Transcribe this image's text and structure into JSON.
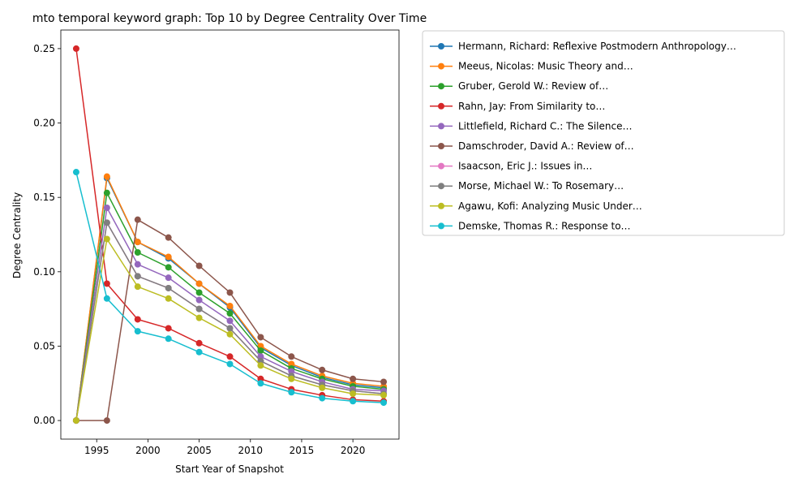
{
  "chart_data": {
    "type": "line",
    "title": "mto temporal keyword graph: Top 10 by Degree Centrality Over Time",
    "xlabel": "Start Year of Snapshot",
    "ylabel": "Degree Centrality",
    "xlim": [
      1991.5,
      2024.5
    ],
    "ylim": [
      -0.0125,
      0.2625
    ],
    "x_ticks": [
      1995,
      2000,
      2005,
      2010,
      2015,
      2020
    ],
    "y_ticks": [
      0.0,
      0.05,
      0.1,
      0.15,
      0.2,
      0.25
    ],
    "y_tick_labels": [
      "0.00",
      "0.05",
      "0.10",
      "0.15",
      "0.20",
      "0.25"
    ],
    "grid": false,
    "legend_position": "outside-right-top",
    "x": [
      1993,
      1996,
      1999,
      2002,
      2005,
      2008,
      2011,
      2014,
      2017,
      2020,
      2023
    ],
    "series": [
      {
        "name": "Hermann, Richard: Reflexive Postmodern Anthropology…",
        "color": "#1f77b4",
        "values": [
          0.0,
          0.163,
          0.12,
          0.109,
          0.092,
          0.076,
          0.049,
          0.037,
          0.029,
          0.024,
          0.022
        ]
      },
      {
        "name": "Meeus, Nicolas: Music Theory and…",
        "color": "#ff7f0e",
        "values": [
          0.0,
          0.164,
          0.12,
          0.11,
          0.092,
          0.077,
          0.05,
          0.038,
          0.03,
          0.025,
          0.023
        ]
      },
      {
        "name": "Gruber, Gerold W.: Review of…",
        "color": "#2ca02c",
        "values": [
          0.0,
          0.153,
          0.113,
          0.103,
          0.086,
          0.072,
          0.047,
          0.035,
          0.028,
          0.023,
          0.021
        ]
      },
      {
        "name": "Rahn, Jay: From Similarity to…",
        "color": "#d62728",
        "values": [
          0.25,
          0.092,
          0.068,
          0.062,
          0.052,
          0.043,
          0.028,
          0.021,
          0.017,
          0.014,
          0.013
        ]
      },
      {
        "name": "Littlefield, Richard C.: The Silence…",
        "color": "#9467bd",
        "values": [
          0.0,
          0.143,
          0.105,
          0.096,
          0.081,
          0.067,
          0.043,
          0.033,
          0.026,
          0.021,
          0.02
        ]
      },
      {
        "name": "Damschroder, David A.: Review of…",
        "color": "#8c564b",
        "values": [
          0.0,
          0.0,
          0.135,
          0.123,
          0.104,
          0.086,
          0.056,
          0.043,
          0.034,
          0.028,
          0.026
        ]
      },
      {
        "name": "Isaacson, Eric J.: Issues in…",
        "color": "#e377c2",
        "values": [
          0.0,
          0.133,
          0.097,
          0.089,
          0.075,
          0.062,
          0.04,
          0.03,
          0.024,
          0.02,
          0.018
        ]
      },
      {
        "name": "Morse, Michael W.: To Rosemary…",
        "color": "#7f7f7f",
        "values": [
          0.0,
          0.133,
          0.097,
          0.089,
          0.075,
          0.062,
          0.04,
          0.03,
          0.024,
          0.02,
          0.018
        ]
      },
      {
        "name": "Agawu, Kofi: Analyzing Music Under…",
        "color": "#bcbd22",
        "values": [
          0.0,
          0.122,
          0.09,
          0.082,
          0.069,
          0.058,
          0.037,
          0.028,
          0.022,
          0.018,
          0.017
        ]
      },
      {
        "name": "Demske, Thomas R.: Response to…",
        "color": "#17becf",
        "values": [
          0.167,
          0.082,
          0.06,
          0.055,
          0.046,
          0.038,
          0.025,
          0.019,
          0.015,
          0.013,
          0.012
        ]
      }
    ]
  }
}
